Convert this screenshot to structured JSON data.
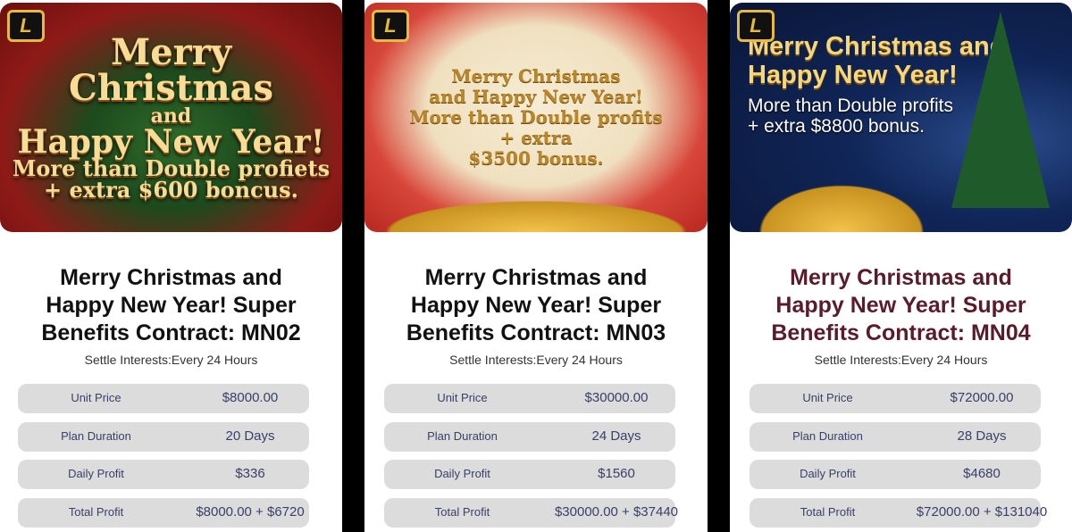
{
  "cards": [
    {
      "banner": {
        "lines": [
          "Merry",
          "Christmas",
          "and",
          "Happy New Year!",
          "More than Double profiets",
          "+ extra $600 boncus."
        ]
      },
      "title": "Merry Christmas and Happy New Year! Super Benefits Contract: MN02",
      "settle": "Settle Interests:Every 24 Hours",
      "rows": [
        {
          "label": "Unit Price",
          "value": "$8000.00"
        },
        {
          "label": "Plan Duration",
          "value": "20 Days"
        },
        {
          "label": "Daily Profit",
          "value": "$336"
        },
        {
          "label": "Total Profit",
          "value": "$8000.00 + $6720"
        }
      ]
    },
    {
      "banner": {
        "lines": [
          "Merry Christmas",
          "and Happy New Year!",
          "More than Double profits",
          "+ extra",
          "$3500 bonus."
        ]
      },
      "title": "Merry Christmas and Happy New Year! Super Benefits Contract: MN03",
      "settle": "Settle Interests:Every 24 Hours",
      "rows": [
        {
          "label": "Unit Price",
          "value": "$30000.00"
        },
        {
          "label": "Plan Duration",
          "value": "24 Days"
        },
        {
          "label": "Daily Profit",
          "value": "$1560"
        },
        {
          "label": "Total Profit",
          "value": "$30000.00 + $37440"
        }
      ]
    },
    {
      "banner": {
        "lines": [
          "Merry Christmas and",
          "Happy New Year!",
          "More than Double profits",
          "+ extra $8800 bonus."
        ]
      },
      "title": "Merry Christmas and Happy New Year! Super Benefits Contract: MN04",
      "settle": "Settle Interests:Every 24 Hours",
      "rows": [
        {
          "label": "Unit Price",
          "value": "$72000.00"
        },
        {
          "label": "Plan Duration",
          "value": "28 Days"
        },
        {
          "label": "Daily Profit",
          "value": "$4680"
        },
        {
          "label": "Total Profit",
          "value": "$72000.00 + $131040"
        }
      ]
    }
  ],
  "logo_text": "L",
  "colors": {
    "title_default": "#111111",
    "title_highlight": "#5a1b2a",
    "row_bg": "#dcdcdc",
    "row_text": "#3a4068"
  }
}
